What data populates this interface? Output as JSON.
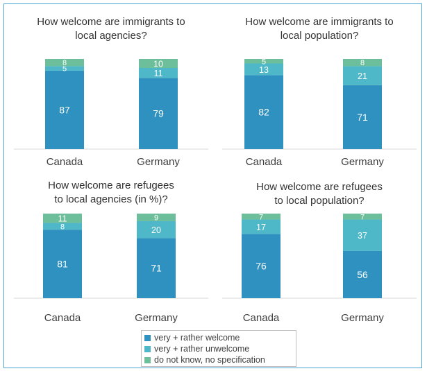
{
  "legend": {
    "items": [
      {
        "label": "very + rather welcome",
        "color": "#2e91bf"
      },
      {
        "label": "very + rather unwelcome",
        "color": "#4eb8c8"
      },
      {
        "label": "do not know, no specification",
        "color": "#6dbf9c"
      }
    ]
  },
  "chart_data": [
    {
      "type": "bar",
      "stacked": true,
      "title": "How welcome are immigrants to local agencies?",
      "categories": [
        "Canada",
        "Germany"
      ],
      "series": [
        {
          "name": "very + rather welcome",
          "values": [
            87,
            79
          ]
        },
        {
          "name": "very + rather unwelcome",
          "values": [
            5,
            11
          ]
        },
        {
          "name": "do not know, no specification",
          "values": [
            8,
            10
          ]
        }
      ],
      "ylim": [
        0,
        100
      ]
    },
    {
      "type": "bar",
      "stacked": true,
      "title": "How welcome are immigrants to local population?",
      "categories": [
        "Canada",
        "Germany"
      ],
      "series": [
        {
          "name": "very + rather welcome",
          "values": [
            82,
            71
          ]
        },
        {
          "name": "very + rather unwelcome",
          "values": [
            13,
            21
          ]
        },
        {
          "name": "do not know, no specification",
          "values": [
            5,
            8
          ]
        }
      ],
      "ylim": [
        0,
        100
      ]
    },
    {
      "type": "bar",
      "stacked": true,
      "title": "How welcome are refugees to local agencies (in %)?",
      "categories": [
        "Canada",
        "Germany"
      ],
      "series": [
        {
          "name": "very + rather welcome",
          "values": [
            81,
            71
          ]
        },
        {
          "name": "very + rather unwelcome",
          "values": [
            8,
            20
          ]
        },
        {
          "name": "do not know, no specification",
          "values": [
            11,
            9
          ]
        }
      ],
      "ylim": [
        0,
        100
      ]
    },
    {
      "type": "bar",
      "stacked": true,
      "title": "How welcome are refugees to local population?",
      "categories": [
        "Canada",
        "Germany"
      ],
      "series": [
        {
          "name": "very + rather welcome",
          "values": [
            76,
            56
          ]
        },
        {
          "name": "very + rather unwelcome",
          "values": [
            17,
            37
          ]
        },
        {
          "name": "do not know, no specification",
          "values": [
            7,
            7
          ]
        }
      ],
      "ylim": [
        0,
        100
      ]
    }
  ]
}
